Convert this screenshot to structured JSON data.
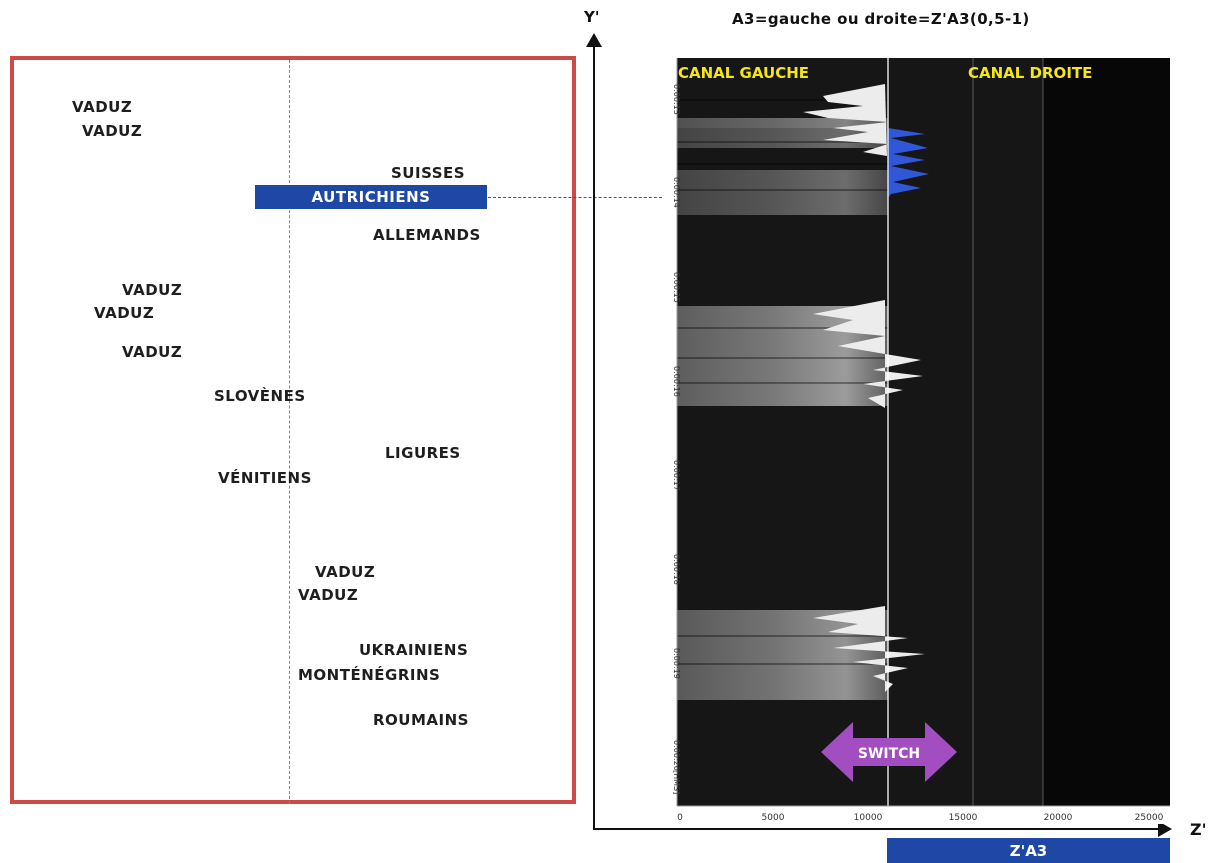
{
  "title": "A3=gauche ou droite=Z'A3(0,5-1)",
  "axes": {
    "y_label": "Y'",
    "x_label": "Z'"
  },
  "axis_bar_label": "Z'A3",
  "colors": {
    "frame": "#cc4b47",
    "highlight": "#1f48a6",
    "switch": "#a24ec0",
    "channel_label": "#f5e616",
    "energy_blue": "#3057d8"
  },
  "word_panel": {
    "highlight": "AUTRICHIENS",
    "words": [
      "VADUZ",
      "VADUZ",
      "SUISSES",
      "ALLEMANDS",
      "VADUZ",
      "VADUZ",
      "VADUZ",
      "SLOVÈNES",
      "LIGURES",
      "VÉNITIENS",
      "VADUZ",
      "VADUZ",
      "UKRAINIENS",
      "MONTÉNÉGRINS",
      "ROUMAINS"
    ]
  },
  "spectrogram": {
    "channel_left": "CANAL GAUCHE",
    "channel_right": "CANAL DROITE",
    "switch_label": "SWITCH",
    "time_ticks": [
      "0:00:13",
      "0:00:14",
      "0:00:15",
      "0:00:16",
      "0:00:17",
      "0:00:18",
      "0:00:19",
      "0:00:20"
    ],
    "time_unit": "[HMS]",
    "freq_ticks": [
      "0",
      "5000",
      "10000",
      "15000",
      "20000",
      "25000"
    ]
  }
}
